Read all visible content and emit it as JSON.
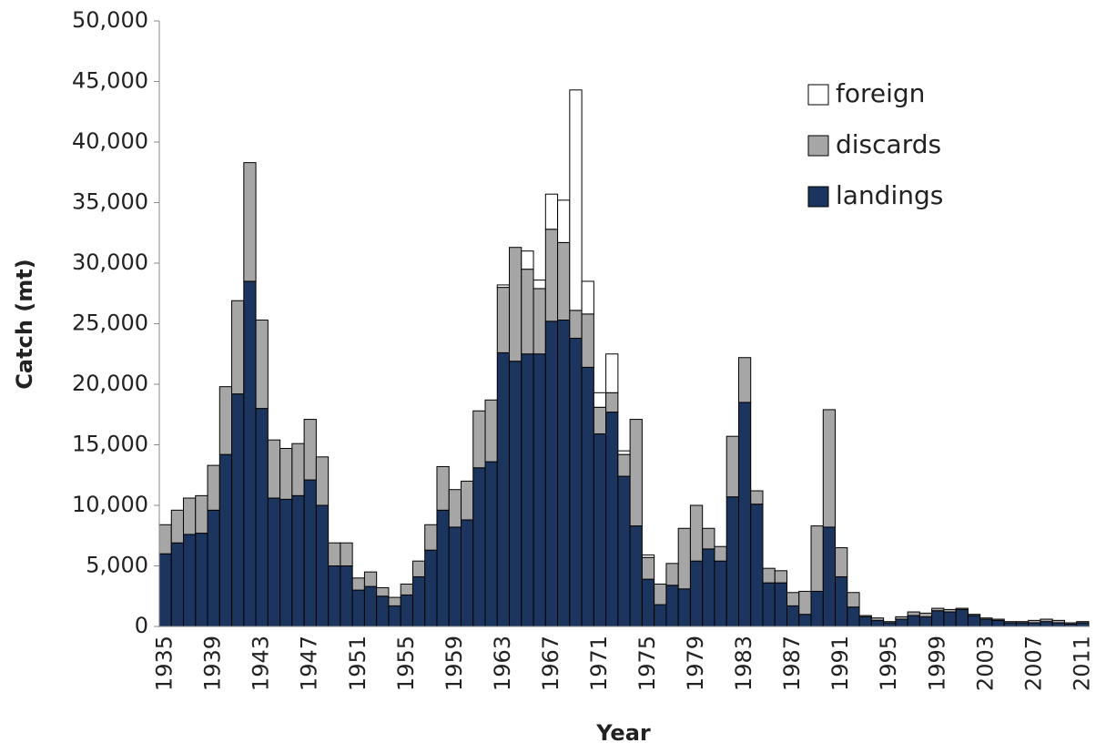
{
  "chart_data": {
    "type": "stacked_bar",
    "x_label": "Year",
    "y_label": "Catch (mt)",
    "categories": [
      "1935",
      null,
      null,
      null,
      "1939",
      null,
      null,
      null,
      "1943",
      null,
      null,
      null,
      "1947",
      null,
      null,
      null,
      "1951",
      null,
      null,
      null,
      "1955",
      null,
      null,
      null,
      "1959",
      null,
      null,
      null,
      "1963",
      null,
      null,
      null,
      "1967",
      null,
      null,
      null,
      "1971",
      null,
      null,
      null,
      "1975",
      null,
      null,
      null,
      "1979",
      null,
      null,
      null,
      "1983",
      null,
      null,
      null,
      "1987",
      null,
      null,
      null,
      "1991",
      null,
      null,
      null,
      "1995",
      null,
      null,
      null,
      "1999",
      null,
      null,
      null,
      "2003",
      null,
      null,
      null,
      "2007",
      null,
      null,
      null,
      "2011"
    ],
    "series": [
      {
        "name": "landings",
        "color": "#1c355e",
        "values": [
          6000,
          6900,
          7600,
          7700,
          9600,
          14200,
          19200,
          28500,
          18000,
          10600,
          10500,
          10800,
          12100,
          10000,
          5000,
          5000,
          3000,
          3300,
          2500,
          1700,
          2600,
          4100,
          6300,
          9600,
          8200,
          8800,
          13100,
          13600,
          22600,
          21900,
          22500,
          22500,
          25200,
          25300,
          23800,
          21400,
          15900,
          17700,
          12400,
          8300,
          3900,
          1800,
          3400,
          3100,
          5400,
          6400,
          5400,
          10700,
          18500,
          10100,
          3600,
          3600,
          1700,
          1000,
          2900,
          8200,
          4100,
          1600,
          800,
          500,
          300,
          600,
          900,
          800,
          1300,
          1200,
          1400,
          900,
          600,
          500,
          300,
          300,
          300,
          400,
          300,
          200,
          300
        ]
      },
      {
        "name": "discards",
        "color": "#a6a6a6",
        "values": [
          2400,
          2700,
          3000,
          3100,
          3700,
          5600,
          7700,
          9800,
          7300,
          4800,
          4200,
          4300,
          5000,
          4000,
          1900,
          1900,
          1000,
          1200,
          700,
          700,
          900,
          1300,
          2100,
          3600,
          3100,
          3200,
          4700,
          5100,
          5400,
          9400,
          7000,
          5400,
          7600,
          6400,
          2300,
          4400,
          2200,
          1600,
          1800,
          8800,
          1800,
          1700,
          1800,
          5000,
          4600,
          1700,
          1200,
          5000,
          3700,
          1100,
          1200,
          1000,
          1100,
          1900,
          5400,
          9700,
          2400,
          1200,
          100,
          200,
          100,
          200,
          300,
          300,
          200,
          200,
          100,
          100,
          100,
          100,
          100,
          100,
          200,
          200,
          200,
          100,
          100
        ]
      },
      {
        "name": "foreign",
        "color": "#ffffff",
        "values": [
          0,
          0,
          0,
          0,
          0,
          0,
          0,
          0,
          0,
          0,
          0,
          0,
          0,
          0,
          0,
          0,
          0,
          0,
          0,
          0,
          0,
          0,
          0,
          0,
          0,
          0,
          0,
          0,
          200,
          0,
          1500,
          700,
          2900,
          3500,
          18200,
          2700,
          1200,
          3200,
          300,
          0,
          200,
          0,
          0,
          0,
          0,
          0,
          0,
          0,
          0,
          0,
          0,
          0,
          0,
          0,
          0,
          0,
          0,
          0,
          0,
          0,
          0,
          0,
          0,
          0,
          0,
          0,
          0,
          0,
          0,
          0,
          0,
          0,
          0,
          0,
          0,
          0,
          0
        ]
      }
    ],
    "ylim": [
      0,
      50000
    ],
    "yticks": [
      0,
      {
        "value": 5000,
        "label": "5,000"
      },
      {
        "value": 10000,
        "label": "10,000"
      },
      {
        "value": 15000,
        "label": "15,000"
      },
      {
        "value": 20000,
        "label": "20,000"
      },
      {
        "value": 25000,
        "label": "25,000"
      },
      {
        "value": 30000,
        "label": "30,000"
      },
      {
        "value": 35000,
        "label": "35,000"
      },
      {
        "value": 40000,
        "label": "40,000"
      },
      {
        "value": 45000,
        "label": "45,000"
      },
      {
        "value": 50000,
        "label": "50,000"
      }
    ],
    "legend": "top-right",
    "grid": false
  }
}
